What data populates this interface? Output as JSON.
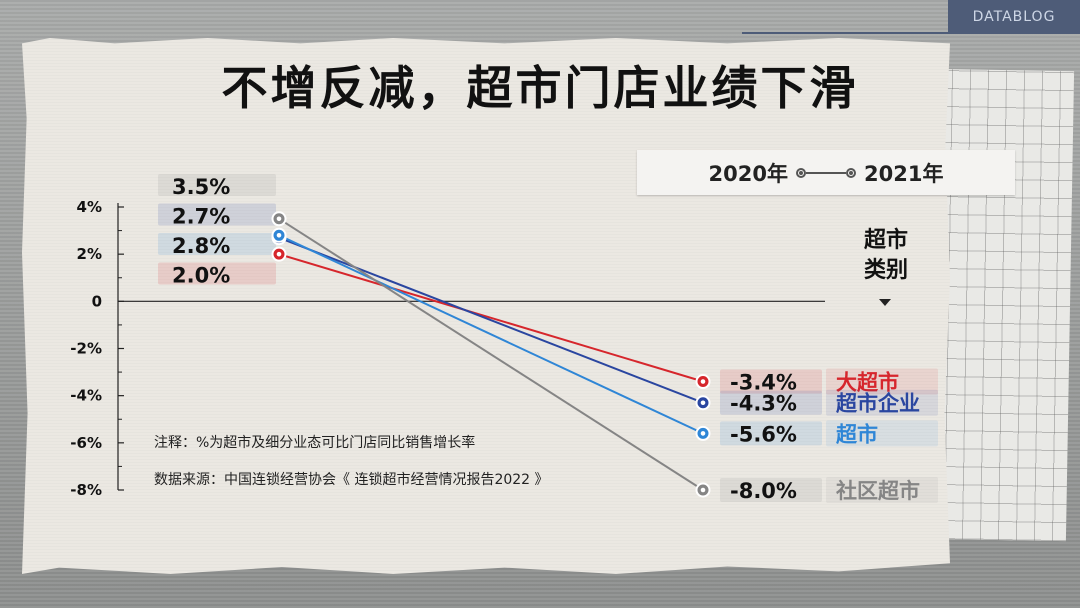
{
  "brand": "DATABLOG",
  "title": "不增反减，超市门店业绩下滑",
  "legend": {
    "from": "2020年",
    "to": "2021年"
  },
  "category_header": [
    "超市",
    "类别"
  ],
  "notes": {
    "note": "注释：%为超市及细分业态可比门店同比销售增长率",
    "source": "数据来源：中国连锁经营协会《 连锁超市经营情况报告2022 》"
  },
  "chart_data": {
    "type": "line",
    "x": [
      "2020年",
      "2021年"
    ],
    "ylim": [
      -8,
      4
    ],
    "y_ticks": [
      "4%",
      "2%",
      "0",
      "-2%",
      "-4%",
      "-6%",
      "-8%"
    ],
    "y_tick_values": [
      4,
      2,
      0,
      -2,
      -4,
      -6,
      -8
    ],
    "series": [
      {
        "name": "大超市",
        "values": [
          2.0,
          -3.4
        ],
        "labels": [
          "2.0%",
          "-3.4%"
        ],
        "color": "#d6262c"
      },
      {
        "name": "超市企业",
        "values": [
          2.7,
          -4.3
        ],
        "labels": [
          "2.7%",
          "-4.3%"
        ],
        "color": "#2a46a0"
      },
      {
        "name": "超市",
        "values": [
          2.8,
          -5.6
        ],
        "labels": [
          "2.8%",
          "-5.6%"
        ],
        "color": "#2f86d6"
      },
      {
        "name": "社区超市",
        "values": [
          3.5,
          -8.0
        ],
        "labels": [
          "3.5%",
          "-8.0%"
        ],
        "color": "#858585"
      }
    ],
    "label_order_2020": [
      "社区超市",
      "超市企业",
      "超市",
      "大超市"
    ]
  }
}
